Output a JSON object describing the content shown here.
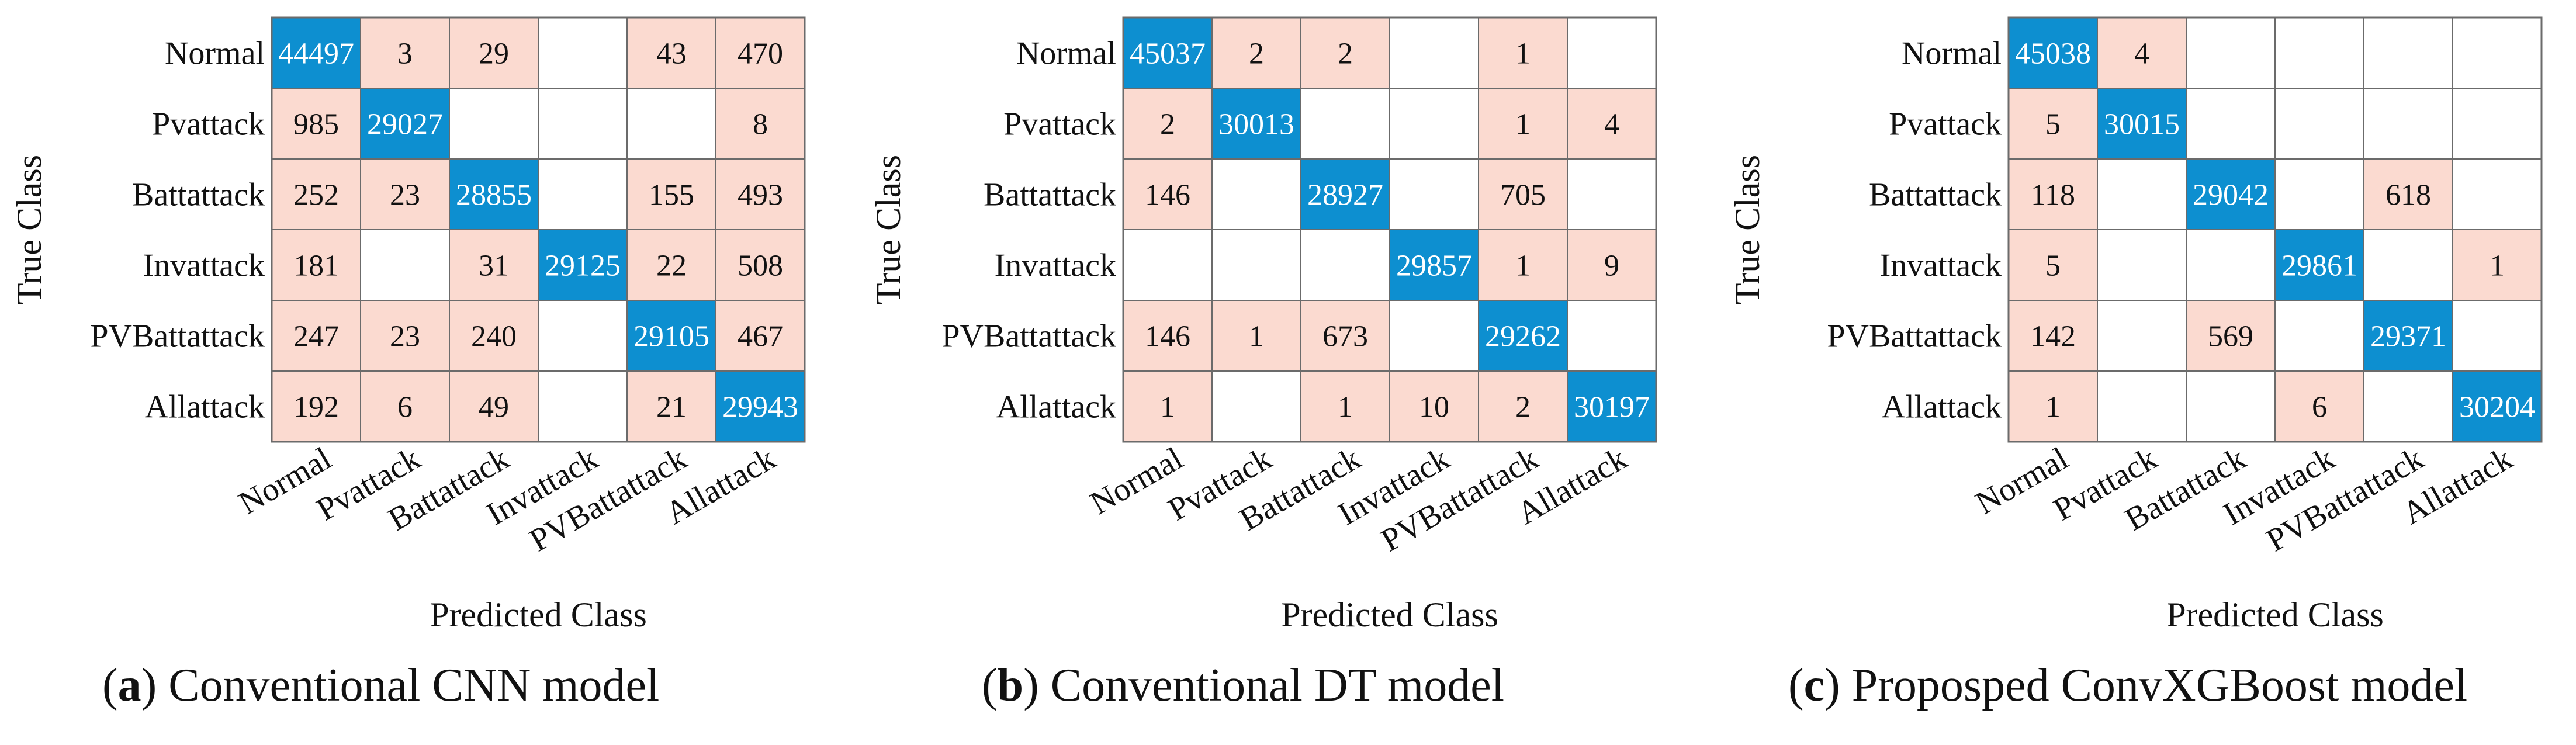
{
  "chart_data": [
    {
      "type": "heatmap",
      "subtype": "confusion-matrix",
      "caption_letter": "a",
      "caption_text": ") Conventional CNN model",
      "caption_open": "(",
      "xlabel": "Predicted Class",
      "ylabel": "True Class",
      "row_labels": [
        "Normal",
        "Pvattack",
        "Battattack",
        "Invattack",
        "PVBattattack",
        "Allattack"
      ],
      "col_labels": [
        "Normal",
        "Pvattack",
        "Battattack",
        "Invattack",
        "PVBattattack",
        "Allattack"
      ],
      "matrix": [
        [
          44497,
          3,
          29,
          null,
          43,
          470
        ],
        [
          985,
          29027,
          null,
          null,
          null,
          8
        ],
        [
          252,
          23,
          28855,
          null,
          155,
          493
        ],
        [
          181,
          null,
          31,
          29125,
          22,
          508
        ],
        [
          247,
          23,
          240,
          null,
          29105,
          467
        ],
        [
          192,
          6,
          49,
          null,
          21,
          29943
        ]
      ]
    },
    {
      "type": "heatmap",
      "subtype": "confusion-matrix",
      "caption_letter": "b",
      "caption_text": ") Conventional DT model",
      "caption_open": "(",
      "xlabel": "Predicted Class",
      "ylabel": "True Class",
      "row_labels": [
        "Normal",
        "Pvattack",
        "Battattack",
        "Invattack",
        "PVBattattack",
        "Allattack"
      ],
      "col_labels": [
        "Normal",
        "Pvattack",
        "Battattack",
        "Invattack",
        "PVBattattack",
        "Allattack"
      ],
      "matrix": [
        [
          45037,
          2,
          2,
          null,
          1,
          null
        ],
        [
          2,
          30013,
          null,
          null,
          1,
          4
        ],
        [
          146,
          null,
          28927,
          null,
          705,
          null
        ],
        [
          null,
          null,
          null,
          29857,
          1,
          9
        ],
        [
          146,
          1,
          673,
          null,
          29262,
          null
        ],
        [
          1,
          null,
          1,
          10,
          2,
          30197
        ]
      ]
    },
    {
      "type": "heatmap",
      "subtype": "confusion-matrix",
      "caption_letter": "c",
      "caption_text": ") Proposped ConvXGBoost model",
      "caption_open": "(",
      "xlabel": "Predicted Class",
      "ylabel": "True Class",
      "row_labels": [
        "Normal",
        "Pvattack",
        "Battattack",
        "Invattack",
        "PVBattattack",
        "Allattack"
      ],
      "col_labels": [
        "Normal",
        "Pvattack",
        "Battattack",
        "Invattack",
        "PVBattattack",
        "Allattack"
      ],
      "matrix": [
        [
          45038,
          4,
          null,
          null,
          null,
          null
        ],
        [
          5,
          30015,
          null,
          null,
          null,
          null
        ],
        [
          118,
          null,
          29042,
          null,
          618,
          null
        ],
        [
          5,
          null,
          null,
          29861,
          null,
          1
        ],
        [
          142,
          null,
          569,
          null,
          29371,
          null
        ],
        [
          1,
          null,
          null,
          6,
          null,
          30204
        ]
      ]
    }
  ],
  "colors": {
    "diagonal": "#0d8fd0",
    "off_diagonal": "#fbdad0",
    "empty": "#ffffff",
    "grid": "#6b6b6b",
    "diagonal_text": "#ffffff",
    "cell_text": "#111111"
  }
}
